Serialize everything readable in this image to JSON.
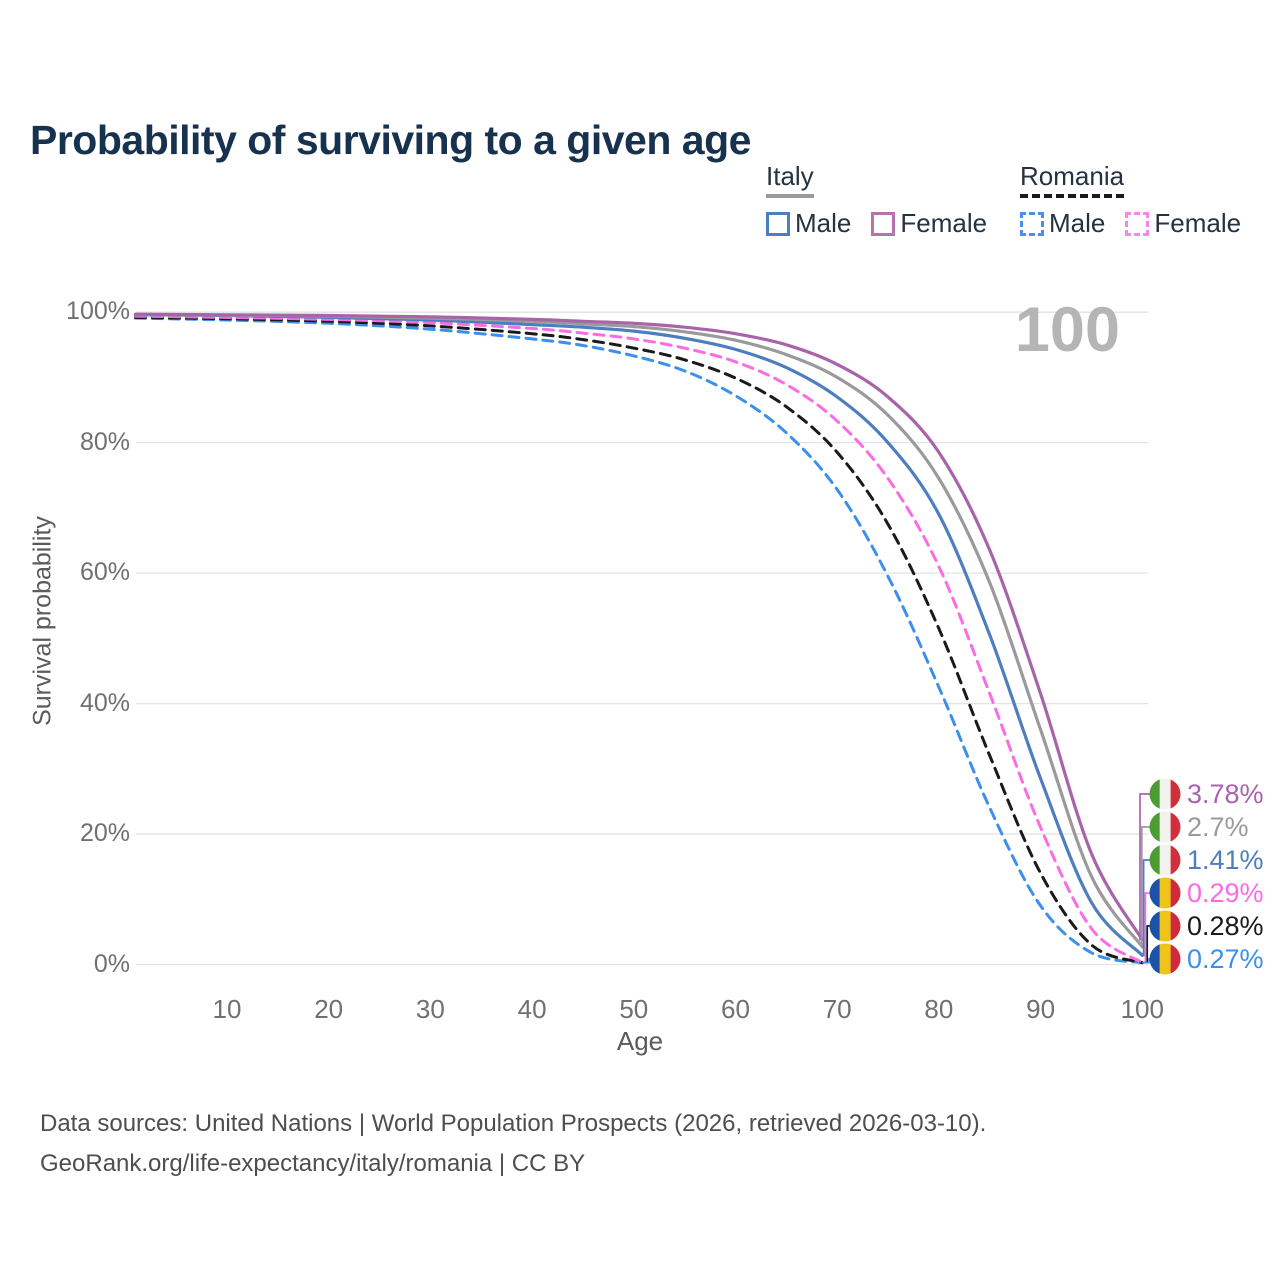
{
  "title": "Probability of surviving to a given age",
  "watermark_age": "100",
  "legend": {
    "groups": [
      {
        "label": "Italy",
        "line_color": "#9a9a9a",
        "line_style": "solid",
        "items": [
          {
            "label": "Male",
            "color": "#4d7ebf",
            "style": "solid"
          },
          {
            "label": "Female",
            "color": "#b674ae",
            "style": "solid"
          }
        ]
      },
      {
        "label": "Romania",
        "line_color": "#1a1a1a",
        "line_style": "dashed",
        "items": [
          {
            "label": "Male",
            "color": "#4a90f0",
            "style": "dashed"
          },
          {
            "label": "Female",
            "color": "#fb84ea",
            "style": "dashed"
          }
        ]
      }
    ]
  },
  "chart_data": {
    "type": "line",
    "title": "Probability of surviving to a given age",
    "xlabel": "Age",
    "ylabel": "Survival probability",
    "x_domain": [
      1,
      100
    ],
    "y_domain": [
      0,
      100
    ],
    "x_ticks": [
      10,
      20,
      30,
      40,
      50,
      60,
      70,
      80,
      90,
      100
    ],
    "y_ticks": [
      {
        "v": 100,
        "label": "100%"
      },
      {
        "v": 80,
        "label": "80%"
      },
      {
        "v": 60,
        "label": "60%"
      },
      {
        "v": 40,
        "label": "40%"
      },
      {
        "v": 20,
        "label": "20%"
      },
      {
        "v": 0,
        "label": "0%"
      }
    ],
    "grid": "horizontal",
    "legend_position": "top-right",
    "ages": [
      1,
      10,
      20,
      30,
      40,
      45,
      50,
      55,
      60,
      65,
      70,
      75,
      80,
      85,
      90,
      95,
      100
    ],
    "series": [
      {
        "id": "romania-male",
        "name": "Romania Male",
        "color": "#3d8fec",
        "dash": true,
        "values": [
          99.1,
          98.8,
          98.3,
          97.4,
          95.9,
          94.9,
          93.3,
          91.0,
          87.2,
          81.5,
          72.8,
          59.5,
          42.5,
          24.0,
          9.0,
          1.8,
          0.27
        ]
      },
      {
        "id": "romania-all",
        "name": "Romania",
        "color": "#1a1a1a",
        "dash": true,
        "values": [
          99.2,
          99.0,
          98.6,
          97.9,
          96.7,
          95.8,
          94.5,
          92.7,
          89.9,
          85.5,
          78.5,
          67.5,
          51.5,
          32.0,
          14.0,
          3.0,
          0.28
        ]
      },
      {
        "id": "romania-female",
        "name": "Romania Female",
        "color": "#fb6ce4",
        "dash": true,
        "values": [
          99.4,
          99.2,
          98.9,
          98.4,
          97.5,
          96.8,
          95.9,
          94.5,
          92.4,
          88.9,
          83.3,
          74.5,
          61.0,
          41.5,
          21.0,
          5.5,
          0.29
        ]
      },
      {
        "id": "italy-male",
        "name": "Italy Male",
        "color": "#4d7ebf",
        "dash": false,
        "values": [
          99.6,
          99.5,
          99.2,
          98.8,
          98.1,
          97.7,
          97.1,
          96.0,
          94.3,
          91.5,
          87.0,
          80.0,
          69.0,
          50.5,
          28.5,
          9.5,
          1.41
        ]
      },
      {
        "id": "italy-all",
        "name": "Italy",
        "color": "#9a9a9a",
        "dash": false,
        "values": [
          99.65,
          99.55,
          99.4,
          99.1,
          98.6,
          98.2,
          97.8,
          97.0,
          95.7,
          93.5,
          90.0,
          84.2,
          74.5,
          58.5,
          36.0,
          13.5,
          2.7
        ]
      },
      {
        "id": "italy-female",
        "name": "Italy Female",
        "color": "#a963ab",
        "dash": false,
        "values": [
          99.7,
          99.6,
          99.5,
          99.3,
          98.9,
          98.6,
          98.3,
          97.7,
          96.7,
          95.0,
          92.0,
          87.0,
          78.5,
          63.5,
          41.5,
          17.0,
          3.78
        ]
      }
    ],
    "end_labels": [
      {
        "text": "3.78%",
        "series": "italy-female",
        "flag": "italy",
        "color": "#a963ab",
        "value": 3.78
      },
      {
        "text": "2.7%",
        "series": "italy-all",
        "flag": "italy",
        "color": "#9a9a9a",
        "value": 2.7
      },
      {
        "text": "1.41%",
        "series": "italy-male",
        "flag": "italy",
        "color": "#4d7ebf",
        "value": 1.41
      },
      {
        "text": "0.29%",
        "series": "romania-female",
        "flag": "romania",
        "color": "#fb6ce4",
        "value": 0.29
      },
      {
        "text": "0.28%",
        "series": "romania-all",
        "flag": "romania",
        "color": "#1a1a1a",
        "value": 0.28
      },
      {
        "text": "0.27%",
        "series": "romania-male",
        "flag": "romania",
        "color": "#3d8fec",
        "value": 0.27
      }
    ],
    "flags": {
      "italy": [
        "#4d9b33",
        "#f2f2ee",
        "#d22f3d"
      ],
      "romania": [
        "#1b51a6",
        "#eec417",
        "#cf2b3c"
      ]
    }
  },
  "footer": {
    "line1": "Data sources: United Nations | World Population Prospects (2026, retrieved 2026-03-10).",
    "line2": "GeoRank.org/life-expectancy/italy/romania | CC BY"
  }
}
